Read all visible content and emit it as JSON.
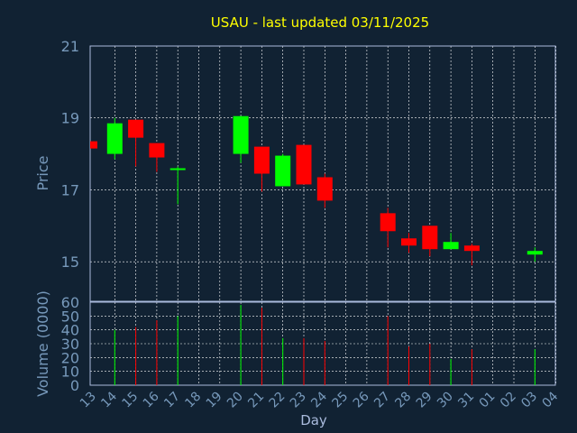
{
  "chart_data": [
    {
      "type": "candlestick",
      "title": "USAU - last updated 03/11/2025",
      "ylabel": "Price",
      "ylim": [
        13.9,
        21
      ],
      "yticks": [
        15,
        17,
        19,
        21
      ],
      "grid": true,
      "x_labels": [
        "13",
        "14",
        "15",
        "16",
        "17",
        "18",
        "19",
        "20",
        "21",
        "22",
        "23",
        "24",
        "25",
        "26",
        "27",
        "28",
        "29",
        "30",
        "31",
        "01",
        "02",
        "03",
        "04"
      ],
      "candles": [
        {
          "day": "13",
          "open": 18.35,
          "close": 18.15,
          "high": 18.35,
          "low": 18.15,
          "direction": "down"
        },
        {
          "day": "14",
          "open": 18.0,
          "close": 18.85,
          "high": 19.0,
          "low": 17.85,
          "direction": "up"
        },
        {
          "day": "15",
          "open": 18.95,
          "close": 18.45,
          "high": 18.95,
          "low": 17.65,
          "direction": "down"
        },
        {
          "day": "16",
          "open": 18.3,
          "close": 17.9,
          "high": 18.3,
          "low": 17.5,
          "direction": "down"
        },
        {
          "day": "17",
          "open": 17.55,
          "close": 17.6,
          "high": 17.65,
          "low": 16.6,
          "direction": "up"
        },
        {
          "day": "20",
          "open": 18.0,
          "close": 19.05,
          "high": 19.05,
          "low": 17.75,
          "direction": "up"
        },
        {
          "day": "21",
          "open": 18.2,
          "close": 17.45,
          "high": 18.2,
          "low": 16.95,
          "direction": "down"
        },
        {
          "day": "22",
          "open": 17.1,
          "close": 17.95,
          "high": 18.0,
          "low": 17.1,
          "direction": "up"
        },
        {
          "day": "23",
          "open": 18.25,
          "close": 17.15,
          "high": 18.25,
          "low": 17.15,
          "direction": "down"
        },
        {
          "day": "24",
          "open": 17.35,
          "close": 16.7,
          "high": 17.45,
          "low": 16.5,
          "direction": "down"
        },
        {
          "day": "27",
          "open": 16.35,
          "close": 15.85,
          "high": 16.5,
          "low": 15.4,
          "direction": "down"
        },
        {
          "day": "28",
          "open": 15.65,
          "close": 15.45,
          "high": 15.8,
          "low": 15.25,
          "direction": "down"
        },
        {
          "day": "29",
          "open": 16.0,
          "close": 15.35,
          "high": 16.0,
          "low": 15.15,
          "direction": "down"
        },
        {
          "day": "30",
          "open": 15.35,
          "close": 15.55,
          "high": 15.8,
          "low": 15.35,
          "direction": "up"
        },
        {
          "day": "31",
          "open": 15.45,
          "close": 15.3,
          "high": 15.5,
          "low": 14.9,
          "direction": "down"
        },
        {
          "day": "03",
          "open": 15.2,
          "close": 15.3,
          "high": 15.4,
          "low": 15.0,
          "direction": "up"
        }
      ]
    },
    {
      "type": "bar",
      "ylabel": "Volume (0000)",
      "xlabel": "Day",
      "ylim": [
        0,
        60
      ],
      "yticks": [
        0,
        10,
        20,
        30,
        40,
        50,
        60
      ],
      "grid": true,
      "categories": [
        "14",
        "15",
        "16",
        "17",
        "20",
        "21",
        "22",
        "23",
        "24",
        "27",
        "28",
        "29",
        "30",
        "31",
        "03"
      ],
      "values": [
        40,
        42,
        47,
        50,
        58,
        56,
        34,
        34,
        32,
        50,
        28,
        30,
        19,
        26,
        26
      ],
      "directions": [
        "up",
        "down",
        "down",
        "up",
        "up",
        "down",
        "up",
        "down",
        "down",
        "down",
        "down",
        "down",
        "up",
        "down",
        "up"
      ]
    }
  ],
  "colors": {
    "background": "#112233",
    "axis": "#aabbdd",
    "grid": "#ffffff",
    "label": "#7799bb",
    "title": "#ffff00",
    "up": "#00ff00",
    "down": "#ff0000"
  }
}
